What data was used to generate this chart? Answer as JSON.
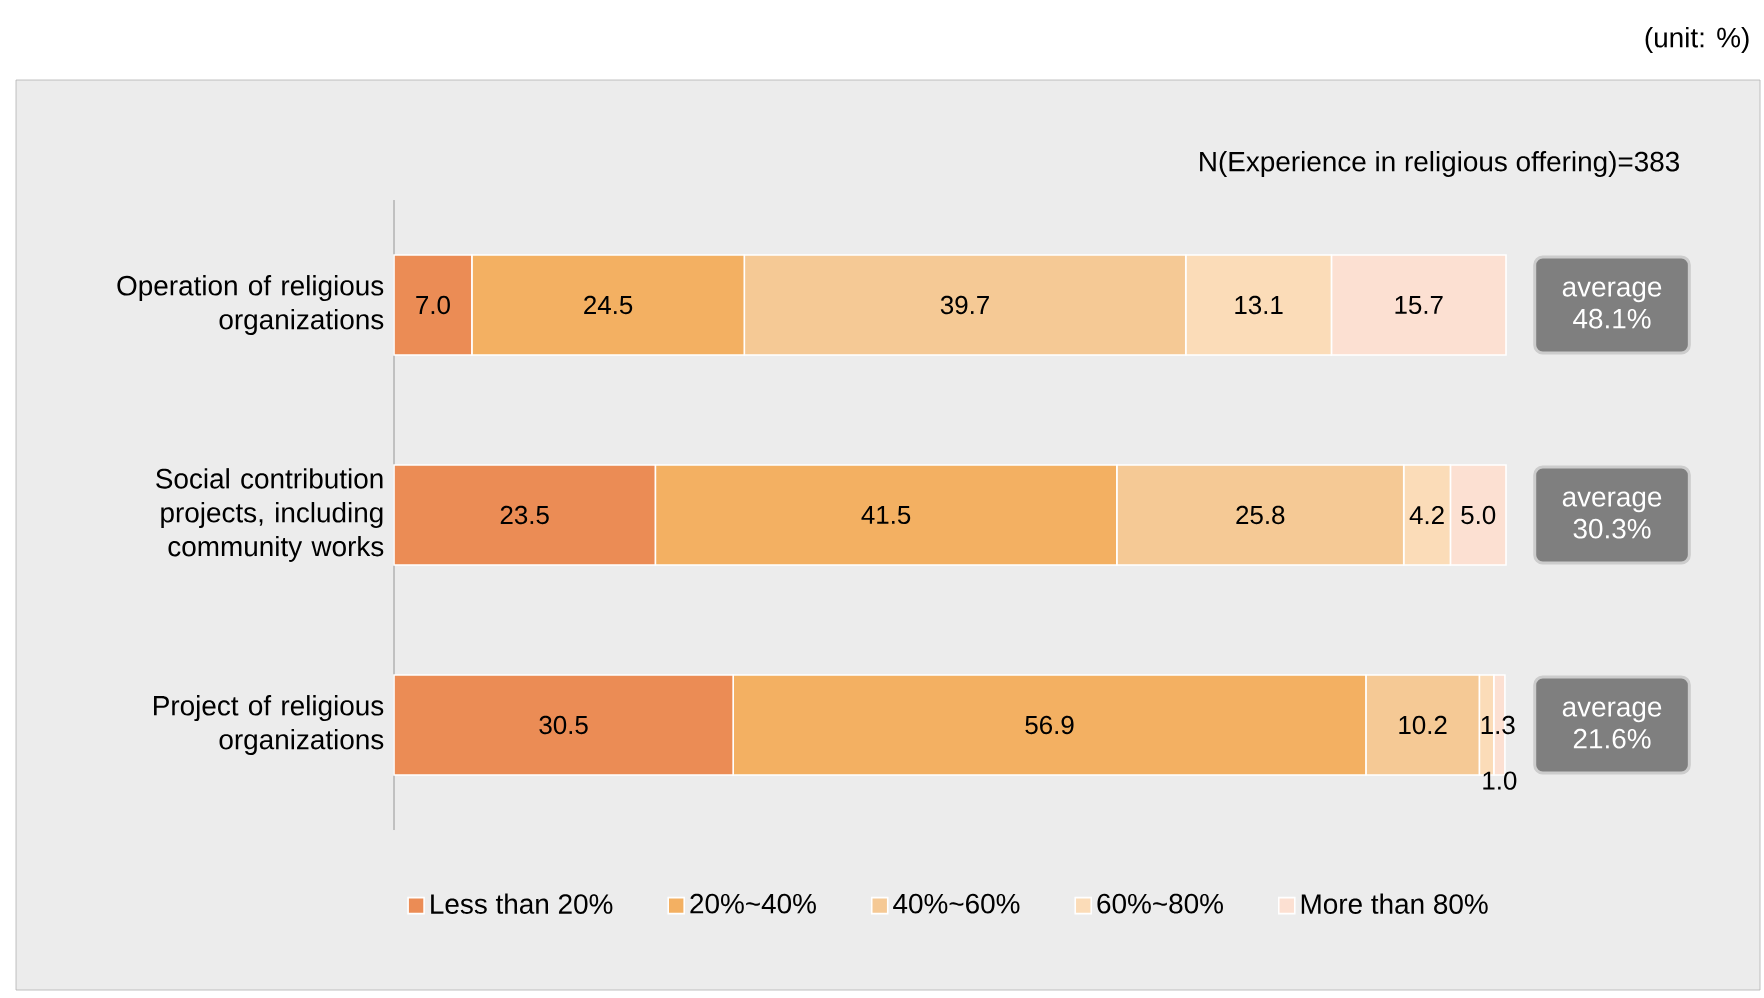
{
  "chart_data": {
    "type": "bar",
    "orientation": "horizontal",
    "stacked": true,
    "legend": "bottom",
    "categories": [
      "Operation of religious organizations",
      "Social contribution projects, including community works",
      "Project of religious organizations"
    ],
    "series": [
      {
        "name": "Less than 20%",
        "color": "#eb8c55",
        "values": [
          7.0,
          23.5,
          30.5
        ],
        "value_labels": [
          "7.0",
          "23.5",
          "30.5"
        ]
      },
      {
        "name": "20%~40%",
        "color": "#f3b062",
        "values": [
          24.5,
          41.5,
          56.9
        ],
        "value_labels": [
          "24.5",
          "41.5",
          "56.9"
        ]
      },
      {
        "name": "40%~60%",
        "color": "#f5c995",
        "values": [
          39.7,
          25.8,
          10.2
        ],
        "value_labels": [
          "39.7",
          "25.8",
          "10.2"
        ]
      },
      {
        "name": "60%~80%",
        "color": "#fbdcb8",
        "values": [
          13.1,
          4.2,
          1.3
        ],
        "value_labels": [
          "13.1",
          "4.2",
          "1.3"
        ]
      },
      {
        "name": "More than 80%",
        "color": "#fce0d2",
        "values": [
          15.7,
          5.0,
          1.0
        ],
        "value_labels": [
          "15.7",
          "5.0",
          "1.0"
        ]
      }
    ],
    "annotations": [
      "(unit: %)",
      "N(Experience in religious offering)=383",
      "average 48.1%",
      "average 30.3%",
      "average 21.6%"
    ]
  }
}
